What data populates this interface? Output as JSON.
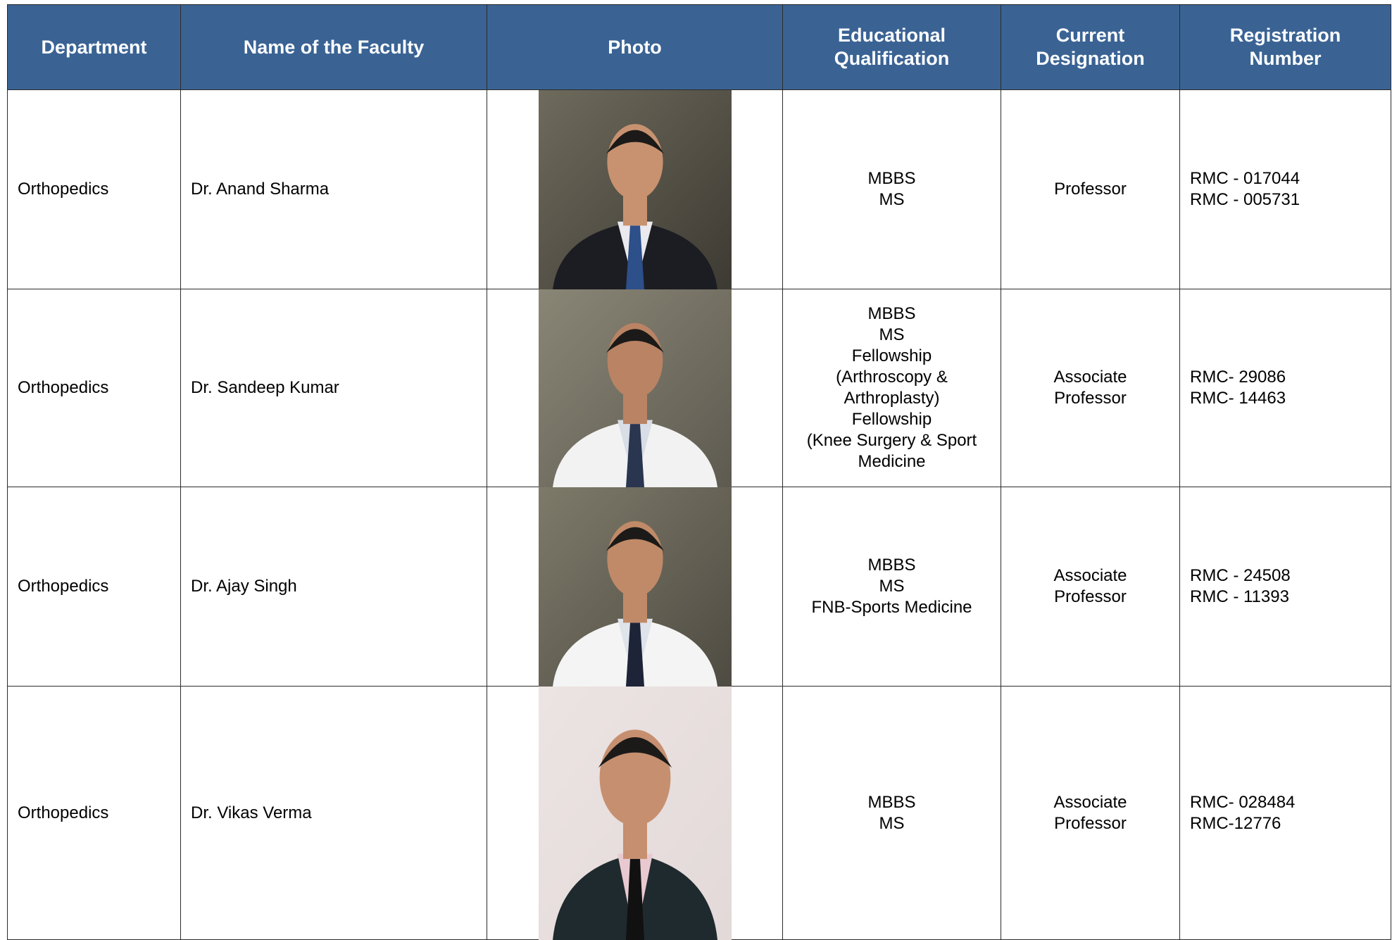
{
  "table": {
    "header": [
      [
        "Department"
      ],
      [
        "Name of the Faculty"
      ],
      [
        "Photo"
      ],
      [
        "Educational",
        "Qualification"
      ],
      [
        "Current",
        "Designation"
      ],
      [
        "Registration",
        "Number"
      ]
    ],
    "rows": [
      [
        [
          "Orthopedics"
        ],
        [
          "Dr. Anand Sharma"
        ],
        [],
        [
          "MBBS",
          "MS"
        ],
        [
          "Professor"
        ],
        [
          "RMC - 017044",
          "RMC - 005731"
        ]
      ],
      [
        [
          "Orthopedics"
        ],
        [
          "Dr. Sandeep Kumar"
        ],
        [],
        [
          "MBBS",
          "MS",
          "Fellowship",
          "(Arthroscopy &",
          "Arthroplasty)",
          "Fellowship",
          "(Knee Surgery & Sport",
          "Medicine"
        ],
        [
          "Associate",
          "Professor"
        ],
        [
          "RMC- 29086",
          "RMC- 14463"
        ]
      ],
      [
        [
          "Orthopedics"
        ],
        [
          "Dr. Ajay Singh"
        ],
        [],
        [
          "MBBS",
          "MS",
          "FNB-Sports Medicine"
        ],
        [
          "Associate",
          "Professor"
        ],
        [
          "RMC - 24508",
          "RMC - 11393"
        ]
      ],
      [
        [
          "Orthopedics"
        ],
        [
          "Dr. Vikas Verma"
        ],
        [],
        [
          "MBBS",
          "MS"
        ],
        [
          "Associate",
          "Professor"
        ],
        [
          "RMC- 028484",
          "RMC-12776"
        ]
      ]
    ]
  }
}
